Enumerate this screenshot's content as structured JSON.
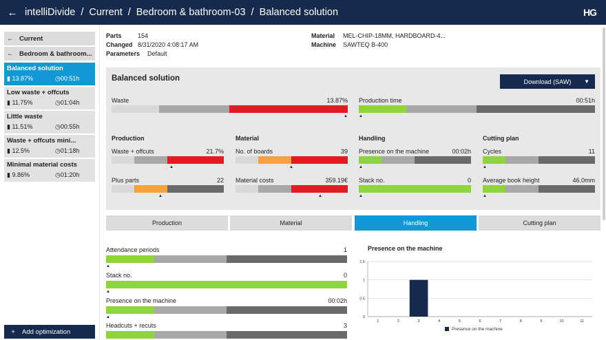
{
  "header": {
    "back_icon": "arrow-left-icon",
    "crumbs": [
      "intelliDivide",
      "Current",
      "Bedroom & bathroom-03",
      "Balanced solution"
    ],
    "separator": "/",
    "logo": "HG"
  },
  "sidebar": {
    "nav": [
      {
        "label": "Current"
      },
      {
        "label": "Bedroom & bathroom..."
      }
    ],
    "solutions": [
      {
        "name": "Balanced solution",
        "waste": "13.87%",
        "time": "00:51h",
        "active": true
      },
      {
        "name": "Low waste + offcuts",
        "waste": "11.75%",
        "time": "01:04h"
      },
      {
        "name": "Little waste",
        "waste": "11.51%",
        "time": "00:55h"
      },
      {
        "name": "Waste + offcuts mini...",
        "waste": "12.5%",
        "time": "01:18h"
      },
      {
        "name": "Minimal material costs",
        "waste": "9.86%",
        "time": "01:20h"
      }
    ],
    "add_label": "Add optimization"
  },
  "info": {
    "parts_label": "Parts",
    "parts": "154",
    "changed_label": "Changed",
    "changed": "8/31/2020 4:08:17 AM",
    "params_label": "Parameters",
    "params": "Default",
    "material_label": "Material",
    "material": "MEL-CHIP-18MM, HARDBOARD-4...",
    "machine_label": "Machine",
    "machine": "SAWTEQ B-400"
  },
  "panel": {
    "title": "Balanced solution",
    "download": "Download (SAW)",
    "waste": {
      "label": "Waste",
      "value": "13.87%"
    },
    "prodtime": {
      "label": "Production time",
      "value": "00:51h"
    },
    "sections": [
      "Production",
      "Material",
      "Handling",
      "Cutting plan"
    ],
    "metrics": {
      "waste_offcuts": {
        "label": "Waste + offcuts",
        "value": "21.7%"
      },
      "plus_parts": {
        "label": "Plus parts",
        "value": "22"
      },
      "boards": {
        "label": "No. of boards",
        "value": "39"
      },
      "mat_costs": {
        "label": "Material costs",
        "value": "359.19€"
      },
      "presence": {
        "label": "Presence on the machine",
        "value": "00:02h"
      },
      "stack": {
        "label": "Stack no.",
        "value": "0"
      },
      "cycles": {
        "label": "Cycles",
        "value": "11"
      },
      "book": {
        "label": "Average book height",
        "value": "46.0mm"
      }
    }
  },
  "tabs": [
    "Production",
    "Material",
    "Handling",
    "Cutting plan"
  ],
  "detail": [
    {
      "label": "Attendance periods",
      "value": "1"
    },
    {
      "label": "Stack no.",
      "value": "0"
    },
    {
      "label": "Presence on the machine",
      "value": "00:02h"
    },
    {
      "label": "Headcuts + recuts",
      "value": "3"
    }
  ],
  "colors": {
    "navy": "#152a4c",
    "blue": "#1398d6",
    "green": "#8fd43a",
    "red": "#e31b23",
    "orange": "#f7a23a",
    "grey": "#a8a8a8",
    "dark": "#6a6a6a"
  },
  "chart_data": {
    "type": "bar",
    "title": "Presence on the machine",
    "categories": [
      "1",
      "2",
      "3",
      "4",
      "5",
      "6",
      "7",
      "8",
      "9",
      "10",
      "11"
    ],
    "series": [
      {
        "name": "Presence on the machine",
        "values": [
          0,
          0,
          1,
          0,
          0,
          0,
          0,
          0,
          0,
          0,
          0
        ]
      }
    ],
    "y_ticks": [
      "0",
      "0.5",
      "1",
      "1.5"
    ],
    "ylim": [
      0,
      1.5
    ],
    "grid": true,
    "legend": "bottom"
  }
}
